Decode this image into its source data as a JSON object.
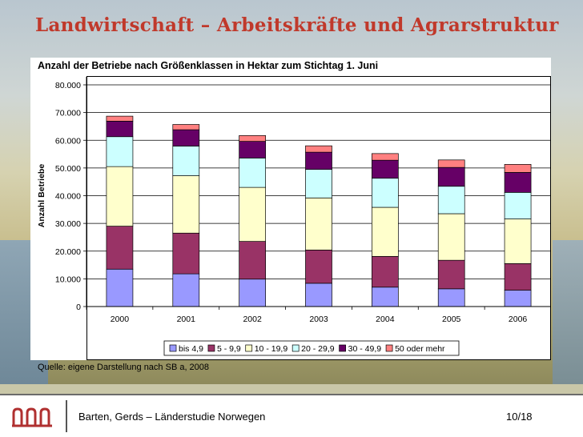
{
  "slide": {
    "title": "Landwirtschaft – Arbeitskräfte und Agrarstruktur",
    "subtitle": "Anzahl der Betriebe nach Größenklassen in Hektar zum Stichtag 1. Juni",
    "source": "Quelle: eigene Darstellung nach SB a, 2008",
    "footer_text": "Barten, Gerds – Länderstudie Norwegen",
    "page": "10/18"
  },
  "chart_data": {
    "type": "bar",
    "stacked": true,
    "title": "Anzahl der Betriebe nach Größenklassen in Hektar zum Stichtag 1. Juni",
    "xlabel": "",
    "ylabel": "Anzahl Betriebe",
    "ylim": [
      0,
      80000
    ],
    "yticks": [
      0,
      10000,
      20000,
      30000,
      40000,
      50000,
      60000,
      70000,
      80000
    ],
    "ytick_labels": [
      "0",
      "10.000",
      "20.000",
      "30.000",
      "40.000",
      "50.000",
      "60.000",
      "70.000",
      "80.000"
    ],
    "categories": [
      "2000",
      "2001",
      "2002",
      "2003",
      "2004",
      "2005",
      "2006"
    ],
    "grid": true,
    "legend": "bottom",
    "series": [
      {
        "name": "bis 4,9",
        "color": "#9999ff",
        "values": [
          13500,
          11800,
          9900,
          8400,
          7000,
          6400,
          5900
        ]
      },
      {
        "name": "5 - 9,9",
        "color": "#993366",
        "values": [
          15500,
          14700,
          13600,
          12000,
          11100,
          10300,
          9600
        ]
      },
      {
        "name": "10 - 19,9",
        "color": "#ffffcc",
        "values": [
          21500,
          20700,
          19500,
          18800,
          17700,
          16800,
          16100
        ]
      },
      {
        "name": "20 - 29,9",
        "color": "#ccffff",
        "values": [
          10800,
          10700,
          10600,
          10300,
          10500,
          9900,
          9600
        ]
      },
      {
        "name": "30 - 49,9",
        "color": "#660066",
        "values": [
          5600,
          5900,
          6000,
          6200,
          6500,
          6800,
          7200
        ]
      },
      {
        "name": "50 oder mehr",
        "color": "#ff8080",
        "values": [
          1800,
          1900,
          2100,
          2300,
          2400,
          2700,
          2900
        ]
      }
    ]
  }
}
